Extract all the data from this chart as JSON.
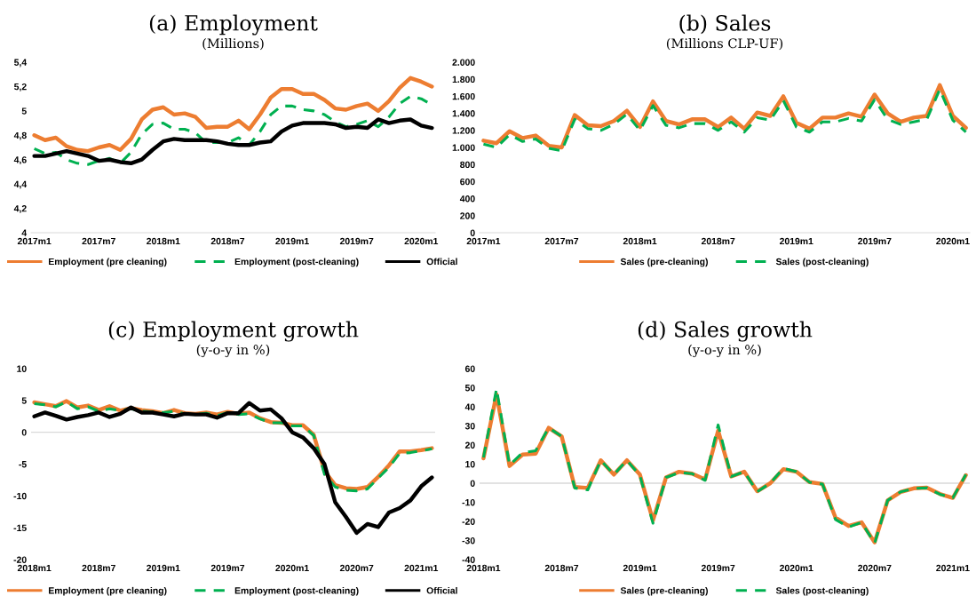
{
  "chart_data": [
    {
      "type": "line",
      "title": "(a) Employment",
      "subtitle": "(Millions)",
      "categories": [
        "2017m1",
        null,
        null,
        null,
        null,
        null,
        "2017m7",
        null,
        null,
        null,
        null,
        null,
        "2018m1",
        null,
        null,
        null,
        null,
        null,
        "2018m7",
        null,
        null,
        null,
        null,
        null,
        "2019m1",
        null,
        null,
        null,
        null,
        null,
        "2019m7",
        null,
        null,
        null,
        null,
        null,
        "2020m1",
        null
      ],
      "series": [
        {
          "name": "Employment (pre cleaning)",
          "color": "#ed7d31",
          "line_style": "solid",
          "values": [
            4.8,
            4.76,
            4.78,
            4.71,
            4.68,
            4.67,
            4.7,
            4.72,
            4.68,
            4.77,
            4.93,
            5.01,
            5.03,
            4.97,
            4.98,
            4.95,
            4.86,
            4.87,
            4.87,
            4.92,
            4.85,
            4.97,
            5.11,
            5.18,
            5.18,
            5.14,
            5.14,
            5.09,
            5.02,
            5.01,
            5.04,
            5.06,
            5.0,
            5.08,
            5.19,
            5.27,
            5.24,
            5.2
          ]
        },
        {
          "name": "Employment (post-cleaning)",
          "color": "#00b050",
          "line_style": "dashed",
          "values": [
            4.69,
            4.65,
            4.66,
            4.6,
            4.57,
            4.56,
            4.59,
            4.61,
            4.57,
            4.66,
            4.81,
            4.89,
            4.9,
            4.85,
            4.85,
            4.82,
            4.74,
            4.74,
            4.74,
            4.78,
            4.72,
            4.83,
            4.97,
            5.04,
            5.04,
            5.01,
            5.0,
            4.97,
            4.91,
            4.87,
            4.89,
            4.92,
            4.87,
            4.95,
            5.06,
            5.12,
            5.1,
            5.05
          ]
        },
        {
          "name": "Official",
          "color": "#000000",
          "line_style": "solid",
          "values": [
            4.63,
            4.63,
            4.65,
            4.67,
            4.65,
            4.63,
            4.59,
            4.6,
            4.58,
            4.57,
            4.6,
            4.68,
            4.75,
            4.77,
            4.76,
            4.76,
            4.76,
            4.75,
            4.73,
            4.72,
            4.72,
            4.74,
            4.75,
            4.83,
            4.88,
            4.9,
            4.9,
            4.9,
            4.89,
            4.86,
            4.87,
            4.86,
            4.93,
            4.9,
            4.92,
            4.93,
            4.88,
            4.86
          ]
        }
      ],
      "ylim": [
        4,
        5.4
      ],
      "yticks": [
        4,
        {
          "value": 4.2,
          "label": "4,2"
        },
        {
          "value": 4.4,
          "label": "4,4"
        },
        {
          "value": 4.6,
          "label": "4,6"
        },
        {
          "value": 4.8,
          "label": "4,8"
        },
        5,
        {
          "value": 5.2,
          "label": "5,2"
        },
        {
          "value": 5.4,
          "label": "5,4"
        }
      ],
      "legend": "bottom",
      "grid": false
    },
    {
      "type": "line",
      "title": "(b) Sales",
      "subtitle": "(Millions CLP-UF)",
      "categories": [
        "2017m1",
        null,
        null,
        null,
        null,
        null,
        "2017m7",
        null,
        null,
        null,
        null,
        null,
        "2018m1",
        null,
        null,
        null,
        null,
        null,
        "2018m7",
        null,
        null,
        null,
        null,
        null,
        "2019m1",
        null,
        null,
        null,
        null,
        null,
        "2019m7",
        null,
        null,
        null,
        null,
        null,
        "2020m1",
        null
      ],
      "series": [
        {
          "name": "Sales (pre-cleaning)",
          "color": "#ed7d31",
          "line_style": "solid",
          "values": [
            1080,
            1050,
            1190,
            1110,
            1140,
            1020,
            1000,
            1380,
            1260,
            1250,
            1310,
            1430,
            1240,
            1540,
            1310,
            1270,
            1330,
            1330,
            1240,
            1350,
            1220,
            1410,
            1370,
            1600,
            1290,
            1220,
            1350,
            1350,
            1400,
            1360,
            1620,
            1400,
            1300,
            1350,
            1370,
            1730,
            1370,
            1230
          ]
        },
        {
          "name": "Sales (post-cleaning)",
          "color": "#00b050",
          "line_style": "dashed",
          "values": [
            1040,
            1000,
            1150,
            1070,
            1100,
            990,
            960,
            1330,
            1220,
            1200,
            1270,
            1390,
            1200,
            1490,
            1260,
            1230,
            1280,
            1280,
            1200,
            1300,
            1180,
            1350,
            1320,
            1550,
            1240,
            1180,
            1300,
            1300,
            1340,
            1310,
            1560,
            1330,
            1270,
            1300,
            1330,
            1680,
            1320,
            1180
          ]
        }
      ],
      "ylim": [
        0,
        2000
      ],
      "yticks": [
        0,
        200,
        400,
        600,
        800,
        {
          "value": 1000,
          "label": "1.000"
        },
        {
          "value": 1200,
          "label": "1.200"
        },
        {
          "value": 1400,
          "label": "1.400"
        },
        {
          "value": 1600,
          "label": "1.600"
        },
        {
          "value": 1800,
          "label": "1.800"
        },
        {
          "value": 2000,
          "label": "2.000"
        }
      ],
      "legend": "bottom",
      "grid": false
    },
    {
      "type": "line",
      "title": "(c) Employment growth",
      "subtitle": "(y-o-y in %)",
      "categories": [
        "2018m1",
        null,
        null,
        null,
        null,
        null,
        "2018m7",
        null,
        null,
        null,
        null,
        null,
        "2019m1",
        null,
        null,
        null,
        null,
        null,
        "2019m7",
        null,
        null,
        null,
        null,
        null,
        "2020m1",
        null,
        null,
        null,
        null,
        null,
        "2020m7",
        null,
        null,
        null,
        null,
        null,
        "2021m1",
        null
      ],
      "series": [
        {
          "name": "Employment (pre cleaning)",
          "color": "#ed7d31",
          "line_style": "solid",
          "values": [
            4.7,
            4.4,
            4.1,
            4.9,
            3.9,
            4.2,
            3.5,
            4.1,
            3.4,
            3.8,
            3.5,
            3.3,
            3.0,
            3.5,
            3.0,
            2.9,
            3.1,
            2.8,
            3.2,
            2.9,
            3.1,
            2.2,
            1.6,
            1.5,
            1.1,
            1.1,
            -0.4,
            -6.1,
            -8.3,
            -8.8,
            -8.9,
            -8.6,
            -7.0,
            -5.2,
            -3.0,
            -3.0,
            -2.8,
            -2.5
          ]
        },
        {
          "name": "Employment (post-cleaning)",
          "color": "#00b050",
          "line_style": "dashed",
          "values": [
            4.5,
            4.3,
            4.0,
            4.8,
            3.7,
            4.0,
            3.3,
            3.7,
            3.4,
            3.7,
            3.3,
            3.2,
            3.1,
            3.3,
            2.9,
            2.8,
            3.0,
            2.6,
            3.1,
            2.8,
            2.9,
            2.1,
            1.5,
            1.5,
            1.0,
            1.0,
            -0.5,
            -6.6,
            -8.6,
            -9.1,
            -9.2,
            -8.9,
            -7.2,
            -5.5,
            -3.3,
            -3.2,
            -2.9,
            -2.6
          ]
        },
        {
          "name": "Official",
          "color": "#000000",
          "line_style": "solid",
          "values": [
            2.5,
            3.1,
            2.6,
            2.0,
            2.4,
            2.7,
            3.1,
            2.4,
            2.9,
            3.9,
            3.1,
            3.1,
            2.8,
            2.5,
            2.9,
            2.8,
            2.8,
            2.3,
            3.0,
            3.0,
            4.6,
            3.4,
            3.6,
            2.2,
            0.0,
            -0.8,
            -2.5,
            -5.0,
            -11.0,
            -13.3,
            -15.8,
            -14.4,
            -14.9,
            -12.6,
            -11.9,
            -10.7,
            -8.5,
            -7.1
          ]
        }
      ],
      "ylim": [
        -20,
        10
      ],
      "yticks": [
        -20,
        -15,
        -10,
        -5,
        0,
        5,
        10
      ],
      "ref_lines": [
        {
          "axis": "y",
          "value": 0,
          "color": "#d9d9d9"
        }
      ],
      "legend": "bottom",
      "grid": false
    },
    {
      "type": "line",
      "title": "(d) Sales growth",
      "subtitle": "(y-o-y in %)",
      "categories": [
        "2018m1",
        null,
        null,
        null,
        null,
        null,
        "2018m7",
        null,
        null,
        null,
        null,
        null,
        "2019m1",
        null,
        null,
        null,
        null,
        null,
        "2019m7",
        null,
        null,
        null,
        null,
        null,
        "2020m1",
        null,
        null,
        null,
        null,
        null,
        "2020m7",
        null,
        null,
        null,
        null,
        null,
        "2021m1",
        null
      ],
      "series": [
        {
          "name": "Sales (pre-cleaning)",
          "color": "#ed7d31",
          "line_style": "solid",
          "values": [
            13,
            46.5,
            9,
            15,
            15.5,
            29,
            24.5,
            -2,
            -2.5,
            12,
            4.5,
            12,
            4.5,
            -19.5,
            3,
            6,
            5,
            2,
            27.5,
            3.5,
            6,
            -4.2,
            0,
            7.3,
            6,
            0.6,
            -0.4,
            -18,
            -22.4,
            -20.5,
            -31,
            -9,
            -4.6,
            -2.7,
            -2.3,
            -5.6,
            -7.7,
            4.2
          ]
        },
        {
          "name": "Sales (post-cleaning)",
          "color": "#00b050",
          "line_style": "dashed",
          "values": [
            13.5,
            49.5,
            9.5,
            16,
            17,
            29,
            24.5,
            -2.5,
            -3.5,
            12,
            4.5,
            12,
            4,
            -21,
            3,
            5.5,
            5,
            1.5,
            30.5,
            3.5,
            6,
            -4.5,
            0,
            7.8,
            6,
            0.5,
            -0.5,
            -19,
            -23,
            -20.5,
            -31.5,
            -9,
            -4.5,
            -2.8,
            -2.4,
            -5.8,
            -7.7,
            4.5
          ]
        }
      ],
      "ylim": [
        -40,
        60
      ],
      "yticks": [
        -40,
        -30,
        -20,
        -10,
        0,
        10,
        20,
        30,
        40,
        50,
        60
      ],
      "ref_lines": [
        {
          "axis": "y",
          "value": 0,
          "color": "#d9d9d9"
        }
      ],
      "legend": "bottom",
      "grid": false
    }
  ]
}
